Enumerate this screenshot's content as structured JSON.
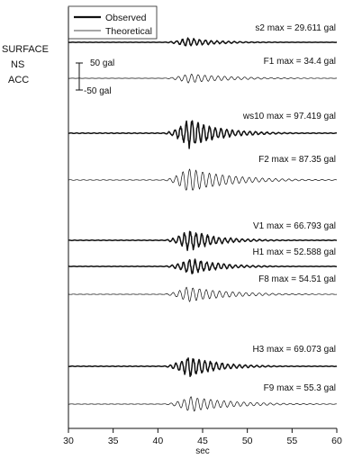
{
  "chart_data": {
    "type": "line",
    "title_lines": [
      "SURFACE",
      "NS",
      "ACC"
    ],
    "xlabel": "sec",
    "xlim": [
      30,
      60
    ],
    "xticks": [
      30,
      35,
      40,
      45,
      50,
      55,
      60
    ],
    "legend": [
      {
        "name": "Observed",
        "style": "thick"
      },
      {
        "name": "Theoretical",
        "style": "thin"
      }
    ],
    "scale_bar": {
      "top": "50 gal",
      "bottom": "-50 gal"
    },
    "series": [
      {
        "name": "s2",
        "label": "s2 max = 29.611 gal",
        "type": "Observed",
        "max_gal": 29.611
      },
      {
        "name": "F1",
        "label": "F1 max = 34.4 gal",
        "type": "Theoretical",
        "max_gal": 34.4
      },
      {
        "name": "ws10",
        "label": "ws10 max = 97.419 gal",
        "type": "Observed",
        "max_gal": 97.419
      },
      {
        "name": "F2",
        "label": "F2 max = 87.35 gal",
        "type": "Theoretical",
        "max_gal": 87.35
      },
      {
        "name": "V1",
        "label": "V1 max = 66.793 gal",
        "type": "Observed",
        "max_gal": 66.793
      },
      {
        "name": "H1",
        "label": "H1 max = 52.588 gal",
        "type": "Observed",
        "max_gal": 52.588
      },
      {
        "name": "F8",
        "label": "F8 max = 54.51 gal",
        "type": "Theoretical",
        "max_gal": 54.51
      },
      {
        "name": "H3",
        "label": "H3 max = 69.073 gal",
        "type": "Observed",
        "max_gal": 69.073
      },
      {
        "name": "F9",
        "label": "F9 max = 55.3 gal",
        "type": "Theoretical",
        "max_gal": 55.3
      }
    ]
  }
}
